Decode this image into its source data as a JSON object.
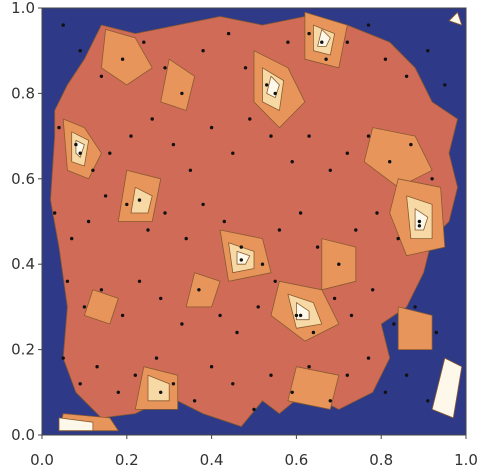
{
  "chart_data": {
    "type": "heatmap",
    "subtype": "contour",
    "title": "",
    "xlabel": "",
    "ylabel": "",
    "xlim": [
      0,
      1
    ],
    "ylim": [
      0,
      1
    ],
    "grid": false,
    "legend": "none",
    "x_ticks": [
      "0.0",
      "0.2",
      "0.4",
      "0.6",
      "0.8",
      "1.0"
    ],
    "y_ticks": [
      "0.0",
      "0.2",
      "0.4",
      "0.6",
      "0.8",
      "1.0"
    ],
    "colors": {
      "background_low": "#2e3a87",
      "level_1": "#d06b57",
      "level_2": "#e8955c",
      "level_3": "#f7d9a6",
      "level_4": "#fdf8ea",
      "contour_line": "#8a5a2e",
      "point": "#111111"
    },
    "regions": [
      {
        "level": 1,
        "points": [
          [
            0.03,
            0.7
          ],
          [
            0.02,
            0.55
          ],
          [
            0.04,
            0.44
          ],
          [
            0.06,
            0.3
          ],
          [
            0.05,
            0.18
          ],
          [
            0.08,
            0.1
          ],
          [
            0.14,
            0.04
          ],
          [
            0.22,
            0.05
          ],
          [
            0.3,
            0.09
          ],
          [
            0.38,
            0.05
          ],
          [
            0.47,
            0.02
          ],
          [
            0.52,
            0.08
          ],
          [
            0.56,
            0.05
          ],
          [
            0.62,
            0.1
          ],
          [
            0.7,
            0.06
          ],
          [
            0.78,
            0.1
          ],
          [
            0.82,
            0.18
          ],
          [
            0.8,
            0.26
          ],
          [
            0.86,
            0.3
          ],
          [
            0.9,
            0.38
          ],
          [
            0.92,
            0.46
          ],
          [
            0.96,
            0.5
          ],
          [
            0.98,
            0.58
          ],
          [
            0.96,
            0.66
          ],
          [
            0.98,
            0.74
          ],
          [
            0.92,
            0.78
          ],
          [
            0.88,
            0.86
          ],
          [
            0.82,
            0.92
          ],
          [
            0.72,
            0.96
          ],
          [
            0.62,
            0.98
          ],
          [
            0.52,
            0.96
          ],
          [
            0.42,
            0.98
          ],
          [
            0.32,
            0.96
          ],
          [
            0.22,
            0.94
          ],
          [
            0.14,
            0.96
          ],
          [
            0.1,
            0.88
          ],
          [
            0.06,
            0.82
          ],
          [
            0.03,
            0.76
          ]
        ]
      },
      {
        "level": 2,
        "points": [
          [
            0.05,
            0.74
          ],
          [
            0.1,
            0.72
          ],
          [
            0.14,
            0.66
          ],
          [
            0.11,
            0.6
          ],
          [
            0.06,
            0.62
          ]
        ]
      },
      {
        "level": 2,
        "points": [
          [
            0.15,
            0.95
          ],
          [
            0.22,
            0.93
          ],
          [
            0.26,
            0.86
          ],
          [
            0.2,
            0.82
          ],
          [
            0.14,
            0.86
          ]
        ]
      },
      {
        "level": 2,
        "points": [
          [
            0.3,
            0.88
          ],
          [
            0.36,
            0.84
          ],
          [
            0.34,
            0.76
          ],
          [
            0.28,
            0.78
          ]
        ]
      },
      {
        "level": 2,
        "points": [
          [
            0.5,
            0.9
          ],
          [
            0.58,
            0.86
          ],
          [
            0.62,
            0.78
          ],
          [
            0.56,
            0.72
          ],
          [
            0.5,
            0.78
          ]
        ]
      },
      {
        "level": 2,
        "points": [
          [
            0.62,
            0.99
          ],
          [
            0.72,
            0.96
          ],
          [
            0.7,
            0.86
          ],
          [
            0.62,
            0.88
          ]
        ]
      },
      {
        "level": 2,
        "points": [
          [
            0.78,
            0.72
          ],
          [
            0.88,
            0.7
          ],
          [
            0.92,
            0.62
          ],
          [
            0.84,
            0.58
          ],
          [
            0.76,
            0.64
          ]
        ]
      },
      {
        "level": 2,
        "points": [
          [
            0.84,
            0.6
          ],
          [
            0.94,
            0.58
          ],
          [
            0.95,
            0.44
          ],
          [
            0.86,
            0.42
          ],
          [
            0.82,
            0.52
          ]
        ]
      },
      {
        "level": 2,
        "points": [
          [
            0.2,
            0.62
          ],
          [
            0.28,
            0.6
          ],
          [
            0.26,
            0.5
          ],
          [
            0.18,
            0.5
          ]
        ]
      },
      {
        "level": 2,
        "points": [
          [
            0.42,
            0.48
          ],
          [
            0.52,
            0.46
          ],
          [
            0.54,
            0.38
          ],
          [
            0.44,
            0.36
          ]
        ]
      },
      {
        "level": 2,
        "points": [
          [
            0.56,
            0.36
          ],
          [
            0.66,
            0.34
          ],
          [
            0.7,
            0.26
          ],
          [
            0.62,
            0.22
          ],
          [
            0.54,
            0.28
          ]
        ]
      },
      {
        "level": 2,
        "points": [
          [
            0.66,
            0.46
          ],
          [
            0.74,
            0.44
          ],
          [
            0.74,
            0.36
          ],
          [
            0.66,
            0.34
          ]
        ]
      },
      {
        "level": 2,
        "points": [
          [
            0.84,
            0.3
          ],
          [
            0.92,
            0.28
          ],
          [
            0.92,
            0.2
          ],
          [
            0.84,
            0.2
          ]
        ]
      },
      {
        "level": 2,
        "points": [
          [
            0.24,
            0.16
          ],
          [
            0.32,
            0.14
          ],
          [
            0.32,
            0.06
          ],
          [
            0.22,
            0.06
          ]
        ]
      },
      {
        "level": 2,
        "points": [
          [
            0.6,
            0.16
          ],
          [
            0.7,
            0.14
          ],
          [
            0.68,
            0.06
          ],
          [
            0.58,
            0.08
          ]
        ]
      },
      {
        "level": 2,
        "points": [
          [
            0.05,
            0.05
          ],
          [
            0.16,
            0.04
          ],
          [
            0.18,
            0.01
          ],
          [
            0.04,
            0.01
          ]
        ]
      },
      {
        "level": 2,
        "points": [
          [
            0.36,
            0.38
          ],
          [
            0.42,
            0.36
          ],
          [
            0.4,
            0.3
          ],
          [
            0.34,
            0.3
          ]
        ]
      },
      {
        "level": 2,
        "points": [
          [
            0.12,
            0.34
          ],
          [
            0.18,
            0.32
          ],
          [
            0.16,
            0.26
          ],
          [
            0.1,
            0.28
          ]
        ]
      },
      {
        "level": 3,
        "points": [
          [
            0.07,
            0.71
          ],
          [
            0.11,
            0.69
          ],
          [
            0.1,
            0.63
          ],
          [
            0.07,
            0.64
          ]
        ]
      },
      {
        "level": 3,
        "points": [
          [
            0.52,
            0.86
          ],
          [
            0.57,
            0.83
          ],
          [
            0.56,
            0.76
          ],
          [
            0.52,
            0.78
          ]
        ]
      },
      {
        "level": 3,
        "points": [
          [
            0.86,
            0.56
          ],
          [
            0.92,
            0.54
          ],
          [
            0.92,
            0.46
          ],
          [
            0.87,
            0.46
          ]
        ]
      },
      {
        "level": 3,
        "points": [
          [
            0.44,
            0.45
          ],
          [
            0.5,
            0.43
          ],
          [
            0.5,
            0.39
          ],
          [
            0.45,
            0.38
          ]
        ]
      },
      {
        "level": 3,
        "points": [
          [
            0.58,
            0.33
          ],
          [
            0.64,
            0.31
          ],
          [
            0.66,
            0.26
          ],
          [
            0.6,
            0.25
          ]
        ]
      },
      {
        "level": 3,
        "points": [
          [
            0.64,
            0.96
          ],
          [
            0.69,
            0.94
          ],
          [
            0.68,
            0.89
          ],
          [
            0.64,
            0.9
          ]
        ]
      },
      {
        "level": 3,
        "points": [
          [
            0.22,
            0.58
          ],
          [
            0.26,
            0.56
          ],
          [
            0.25,
            0.52
          ],
          [
            0.21,
            0.52
          ]
        ]
      },
      {
        "level": 3,
        "points": [
          [
            0.25,
            0.14
          ],
          [
            0.3,
            0.12
          ],
          [
            0.3,
            0.08
          ],
          [
            0.25,
            0.08
          ]
        ]
      },
      {
        "level": 4,
        "points": [
          [
            0.54,
            0.84
          ],
          [
            0.56,
            0.82
          ],
          [
            0.55,
            0.79
          ],
          [
            0.53,
            0.8
          ]
        ]
      },
      {
        "level": 4,
        "points": [
          [
            0.88,
            0.53
          ],
          [
            0.91,
            0.51
          ],
          [
            0.9,
            0.48
          ],
          [
            0.88,
            0.48
          ]
        ]
      },
      {
        "level": 4,
        "points": [
          [
            0.46,
            0.43
          ],
          [
            0.49,
            0.42
          ],
          [
            0.48,
            0.4
          ],
          [
            0.46,
            0.4
          ]
        ]
      },
      {
        "level": 4,
        "points": [
          [
            0.6,
            0.31
          ],
          [
            0.63,
            0.29
          ],
          [
            0.63,
            0.27
          ],
          [
            0.6,
            0.27
          ]
        ]
      },
      {
        "level": 4,
        "points": [
          [
            0.66,
            0.95
          ],
          [
            0.68,
            0.93
          ],
          [
            0.67,
            0.91
          ],
          [
            0.65,
            0.91
          ]
        ]
      },
      {
        "level": 4,
        "points": [
          [
            0.08,
            0.69
          ],
          [
            0.1,
            0.68
          ],
          [
            0.09,
            0.65
          ],
          [
            0.08,
            0.66
          ]
        ]
      },
      {
        "level": 4,
        "points": [
          [
            0.95,
            0.18
          ],
          [
            0.99,
            0.16
          ],
          [
            0.97,
            0.04
          ],
          [
            0.92,
            0.06
          ]
        ]
      },
      {
        "level": 4,
        "points": [
          [
            0.04,
            0.04
          ],
          [
            0.12,
            0.03
          ],
          [
            0.12,
            0.01
          ],
          [
            0.04,
            0.01
          ]
        ]
      },
      {
        "level": 4,
        "points": [
          [
            0.98,
            0.99
          ],
          [
            0.99,
            0.96
          ],
          [
            0.96,
            0.97
          ]
        ]
      }
    ],
    "points": [
      [
        0.05,
        0.96
      ],
      [
        0.09,
        0.9
      ],
      [
        0.14,
        0.84
      ],
      [
        0.19,
        0.88
      ],
      [
        0.24,
        0.92
      ],
      [
        0.29,
        0.86
      ],
      [
        0.33,
        0.8
      ],
      [
        0.38,
        0.9
      ],
      [
        0.44,
        0.94
      ],
      [
        0.48,
        0.86
      ],
      [
        0.53,
        0.82
      ],
      [
        0.58,
        0.92
      ],
      [
        0.63,
        0.94
      ],
      [
        0.67,
        0.88
      ],
      [
        0.72,
        0.92
      ],
      [
        0.77,
        0.96
      ],
      [
        0.81,
        0.88
      ],
      [
        0.86,
        0.84
      ],
      [
        0.91,
        0.9
      ],
      [
        0.95,
        0.82
      ],
      [
        0.04,
        0.72
      ],
      [
        0.08,
        0.68
      ],
      [
        0.12,
        0.62
      ],
      [
        0.16,
        0.66
      ],
      [
        0.21,
        0.7
      ],
      [
        0.26,
        0.74
      ],
      [
        0.31,
        0.68
      ],
      [
        0.35,
        0.62
      ],
      [
        0.4,
        0.72
      ],
      [
        0.45,
        0.66
      ],
      [
        0.49,
        0.74
      ],
      [
        0.54,
        0.7
      ],
      [
        0.59,
        0.64
      ],
      [
        0.63,
        0.7
      ],
      [
        0.68,
        0.62
      ],
      [
        0.72,
        0.66
      ],
      [
        0.77,
        0.7
      ],
      [
        0.82,
        0.64
      ],
      [
        0.87,
        0.68
      ],
      [
        0.92,
        0.6
      ],
      [
        0.03,
        0.52
      ],
      [
        0.07,
        0.46
      ],
      [
        0.11,
        0.5
      ],
      [
        0.15,
        0.56
      ],
      [
        0.2,
        0.54
      ],
      [
        0.25,
        0.48
      ],
      [
        0.29,
        0.52
      ],
      [
        0.34,
        0.46
      ],
      [
        0.38,
        0.54
      ],
      [
        0.43,
        0.5
      ],
      [
        0.47,
        0.44
      ],
      [
        0.52,
        0.4
      ],
      [
        0.56,
        0.48
      ],
      [
        0.61,
        0.52
      ],
      [
        0.65,
        0.44
      ],
      [
        0.7,
        0.4
      ],
      [
        0.74,
        0.48
      ],
      [
        0.79,
        0.52
      ],
      [
        0.84,
        0.46
      ],
      [
        0.89,
        0.5
      ],
      [
        0.06,
        0.36
      ],
      [
        0.1,
        0.3
      ],
      [
        0.14,
        0.34
      ],
      [
        0.19,
        0.28
      ],
      [
        0.23,
        0.36
      ],
      [
        0.28,
        0.32
      ],
      [
        0.33,
        0.26
      ],
      [
        0.37,
        0.34
      ],
      [
        0.42,
        0.28
      ],
      [
        0.46,
        0.24
      ],
      [
        0.51,
        0.3
      ],
      [
        0.55,
        0.36
      ],
      [
        0.6,
        0.28
      ],
      [
        0.64,
        0.24
      ],
      [
        0.69,
        0.32
      ],
      [
        0.73,
        0.28
      ],
      [
        0.78,
        0.34
      ],
      [
        0.83,
        0.26
      ],
      [
        0.88,
        0.3
      ],
      [
        0.93,
        0.24
      ],
      [
        0.05,
        0.18
      ],
      [
        0.09,
        0.12
      ],
      [
        0.13,
        0.16
      ],
      [
        0.18,
        0.1
      ],
      [
        0.22,
        0.14
      ],
      [
        0.27,
        0.18
      ],
      [
        0.31,
        0.12
      ],
      [
        0.36,
        0.08
      ],
      [
        0.4,
        0.16
      ],
      [
        0.45,
        0.12
      ],
      [
        0.5,
        0.06
      ],
      [
        0.54,
        0.14
      ],
      [
        0.59,
        0.1
      ],
      [
        0.63,
        0.16
      ],
      [
        0.68,
        0.08
      ],
      [
        0.72,
        0.14
      ],
      [
        0.77,
        0.18
      ],
      [
        0.81,
        0.1
      ],
      [
        0.86,
        0.14
      ],
      [
        0.91,
        0.08
      ],
      [
        0.55,
        0.8
      ],
      [
        0.89,
        0.49
      ],
      [
        0.47,
        0.41
      ],
      [
        0.61,
        0.28
      ],
      [
        0.66,
        0.92
      ],
      [
        0.09,
        0.66
      ],
      [
        0.23,
        0.55
      ],
      [
        0.28,
        0.1
      ]
    ]
  }
}
